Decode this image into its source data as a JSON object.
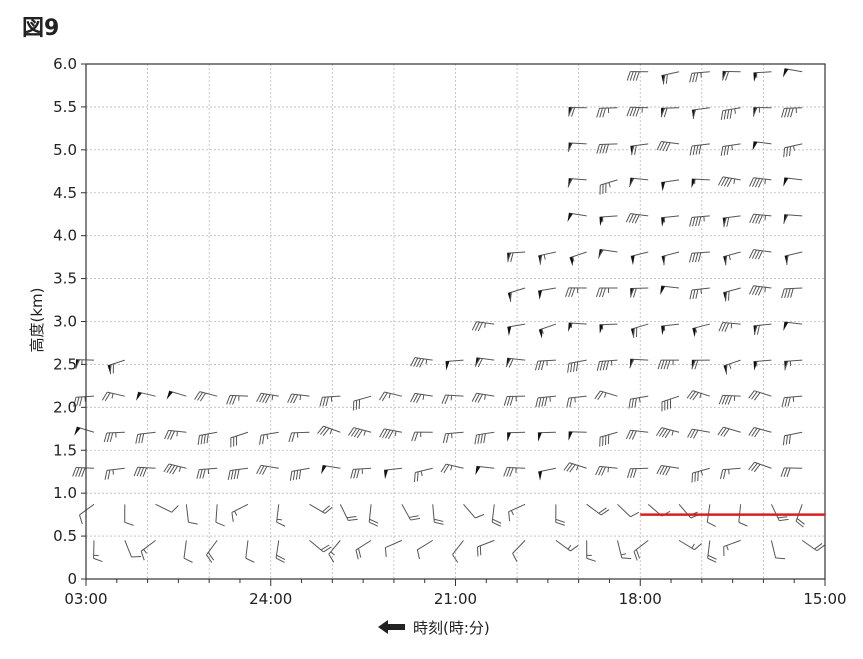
{
  "figure_label": "図9",
  "chart_data": {
    "type": "wind-barb",
    "xlabel": "時刻(時:分)",
    "ylabel": "高度(km)",
    "x_tick_labels": [
      "03:00",
      "24:00",
      "21:00",
      "18:00",
      "15:00"
    ],
    "y_tick_labels": [
      "0",
      "0.5",
      "1.0",
      "1.5",
      "2.0",
      "2.5",
      "3.0",
      "3.5",
      "4.0",
      "4.5",
      "5.0",
      "5.5",
      "6.0"
    ],
    "x_direction": "time decreases to the right (arrow points left toward later times)",
    "ylim": [
      0,
      6.0
    ],
    "grid": true,
    "annotation": {
      "type": "horizontal-line",
      "color": "#d62020",
      "y_km": 0.75,
      "x_from": "18:00",
      "x_to": "15:00"
    },
    "barb_color": "#555555"
  }
}
